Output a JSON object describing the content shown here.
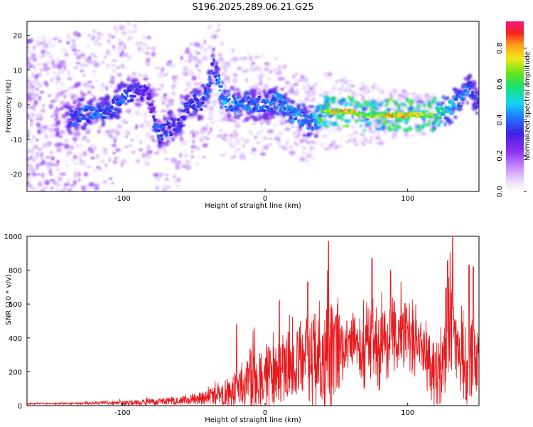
{
  "title": "S196.2025.289.06.21.G25",
  "colors": {
    "snr_line": "#e8191d",
    "density": "#6a00e8",
    "ridge_mid": "#19c2ff",
    "ridge_high": "#ffe14a",
    "ridge_peak": "#e8192a"
  },
  "chart_data": [
    {
      "type": "heatmap",
      "name": "spectrogram",
      "xlabel": "Height of straight line (km)",
      "ylabel": "Frequency (Hz)",
      "xlim": [
        -167,
        150
      ],
      "ylim": [
        -25,
        24
      ],
      "xticks": [
        -100,
        0,
        100
      ],
      "xtick_labels": [
        "-100",
        "0",
        "100"
      ],
      "yticks": [
        -20,
        -10,
        0,
        10,
        20
      ],
      "ytick_labels": [
        "-20",
        "-10",
        "0",
        "10",
        "20"
      ],
      "grid": false,
      "ridge": {
        "x": [
          -167,
          -150,
          -130,
          -118,
          -110,
          -100,
          -90,
          -82,
          -75,
          -68,
          -60,
          -52,
          -45,
          -40,
          -36,
          -30,
          -20,
          -10,
          0,
          10,
          20,
          30,
          36,
          40,
          50,
          60,
          70,
          80,
          90,
          100,
          110,
          118,
          125,
          130,
          138,
          142,
          146,
          150
        ],
        "freq_hz": [
          -8,
          -6,
          -3,
          -2,
          -2,
          2,
          4,
          3,
          -9,
          -7,
          -5,
          1,
          0,
          4,
          12,
          2,
          0,
          0,
          0,
          1,
          -3,
          -5,
          -5,
          -2,
          -2,
          -2,
          -3,
          -3,
          -3,
          -3,
          -3,
          -3,
          -2,
          -1,
          2,
          5,
          3,
          0
        ],
        "amplitude": [
          0.25,
          0.3,
          0.45,
          0.5,
          0.45,
          0.45,
          0.4,
          0.35,
          0.45,
          0.4,
          0.4,
          0.45,
          0.45,
          0.5,
          0.4,
          0.55,
          0.5,
          0.5,
          0.45,
          0.55,
          0.5,
          0.5,
          0.55,
          0.75,
          0.9,
          0.9,
          0.8,
          0.85,
          0.9,
          0.9,
          0.85,
          0.8,
          0.6,
          0.55,
          0.5,
          0.5,
          0.45,
          0.4
        ]
      },
      "colorbar": {
        "label": "Normalized spectral amplitude",
        "range": [
          0.0,
          0.95
        ],
        "ticks": [
          0.0,
          0.2,
          0.4,
          0.6,
          0.8
        ],
        "tick_labels": [
          "0.0",
          "0.2",
          "0.4",
          "0.6",
          "0.8"
        ],
        "colormap": "rainbow"
      }
    },
    {
      "type": "line",
      "name": "snr",
      "xlabel": "Height of straight line (km)",
      "ylabel": "SNR (10 * v/v)",
      "xlim": [
        -167,
        150
      ],
      "ylim": [
        0,
        1000
      ],
      "xticks": [
        -100,
        0,
        100
      ],
      "xtick_labels": [
        "-100",
        "0",
        "100"
      ],
      "yticks": [
        0,
        200,
        400,
        600,
        800,
        1000
      ],
      "ytick_labels": [
        "0",
        "200",
        "400",
        "600",
        "800",
        "1000"
      ],
      "grid": false,
      "envelope": {
        "x": [
          -167,
          -140,
          -120,
          -100,
          -80,
          -60,
          -50,
          -40,
          -30,
          -20,
          -10,
          0,
          10,
          20,
          30,
          35,
          40,
          44,
          50,
          55,
          60,
          65,
          70,
          75,
          80,
          90,
          100,
          110,
          118,
          125,
          130,
          135,
          140,
          145,
          150
        ],
        "baseline": [
          10,
          12,
          15,
          15,
          20,
          30,
          40,
          50,
          70,
          100,
          150,
          170,
          200,
          260,
          280,
          250,
          230,
          260,
          320,
          300,
          420,
          370,
          280,
          400,
          330,
          430,
          400,
          330,
          180,
          230,
          480,
          300,
          240,
          260,
          260
        ],
        "amplitude": [
          10,
          12,
          16,
          22,
          35,
          45,
          60,
          80,
          120,
          200,
          320,
          320,
          360,
          380,
          480,
          560,
          480,
          680,
          460,
          300,
          320,
          260,
          380,
          420,
          460,
          420,
          400,
          300,
          380,
          460,
          500,
          280,
          500,
          400,
          300
        ]
      },
      "peaks": [
        {
          "x": -20,
          "y": 480
        },
        {
          "x": 10,
          "y": 620
        },
        {
          "x": 30,
          "y": 730
        },
        {
          "x": 44.5,
          "y": 970
        },
        {
          "x": 75,
          "y": 870
        },
        {
          "x": 88,
          "y": 800
        },
        {
          "x": 128,
          "y": 855
        },
        {
          "x": 131.5,
          "y": 995
        },
        {
          "x": 143,
          "y": 830
        },
        {
          "x": 146,
          "y": 820
        }
      ]
    }
  ]
}
